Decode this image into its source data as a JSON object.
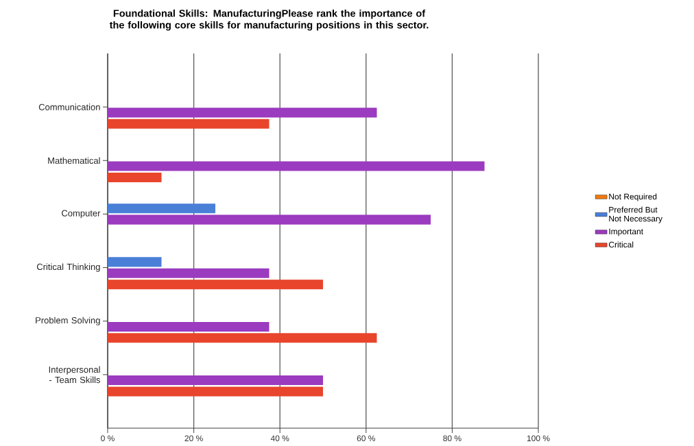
{
  "chart_data": {
    "type": "bar",
    "orientation": "horizontal",
    "title": "Foundational Skills: ManufacturingPlease rank the importance of the following core skills for manufacturing positions in this sector.",
    "categories": [
      "Communication",
      "Mathematical",
      "Computer",
      "Critical Thinking",
      "Problem Solving",
      "Interpersonal - Team Skills"
    ],
    "series": [
      {
        "name": "Not Required",
        "color": "#f07a10",
        "values": [
          0,
          0,
          0,
          0,
          0,
          0
        ]
      },
      {
        "name": "Preferred But Not Necessary",
        "color": "#4a7fd8",
        "values": [
          0,
          0,
          25,
          12.5,
          0,
          0
        ]
      },
      {
        "name": "Important",
        "color": "#9b3bbf",
        "values": [
          62.5,
          87.5,
          75,
          37.5,
          37.5,
          50
        ]
      },
      {
        "name": "Critical",
        "color": "#e8452c",
        "values": [
          37.5,
          12.5,
          0,
          50,
          62.5,
          50
        ]
      }
    ],
    "xlim": [
      0,
      100
    ],
    "xticks": [
      {
        "value": 0,
        "label": "0 %"
      },
      {
        "value": 20,
        "label": "20 %"
      },
      {
        "value": 40,
        "label": "40 %"
      },
      {
        "value": 60,
        "label": "60 %"
      },
      {
        "value": 80,
        "label": "80 %"
      },
      {
        "value": 100,
        "label": "100 %"
      }
    ],
    "grid": "x",
    "legend": "right"
  }
}
